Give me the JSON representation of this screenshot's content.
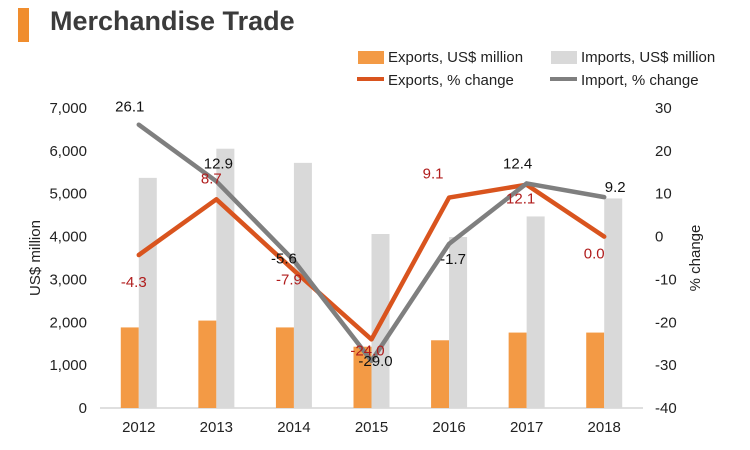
{
  "header": {
    "title": "Merchandise Trade",
    "accent_color": "#f08d2e"
  },
  "chart_data": {
    "type": "bar",
    "categories": [
      "2012",
      "2013",
      "2014",
      "2015",
      "2016",
      "2017",
      "2018"
    ],
    "series": [
      {
        "name": "Exports, US$ million",
        "kind": "bar",
        "axis": "left",
        "color": "#f39a45",
        "values": [
          1880,
          2040,
          1880,
          1430,
          1580,
          1760,
          1760
        ]
      },
      {
        "name": "Imports, US$ million",
        "kind": "bar",
        "axis": "left",
        "color": "#d9d9d9",
        "values": [
          5370,
          6050,
          5720,
          4060,
          3990,
          4470,
          4890
        ]
      },
      {
        "name": "Exports, % change",
        "kind": "line",
        "axis": "right",
        "color": "#d9541e",
        "values": [
          -4.3,
          8.7,
          -7.9,
          -24.0,
          9.1,
          12.1,
          0.0
        ],
        "labels": [
          "-4.3",
          "8.7",
          "-7.9",
          "-24.0",
          "9.1",
          "12.1",
          "0.0"
        ],
        "label_color": "#b01c1c"
      },
      {
        "name": "Import, % change",
        "kind": "line",
        "axis": "right",
        "color": "#7f7f7f",
        "values": [
          26.1,
          12.9,
          -5.6,
          -29.0,
          -1.7,
          12.4,
          9.2
        ],
        "labels": [
          "26.1",
          "12.9",
          "-5.6",
          "-29.0",
          "-1.7",
          "12.4",
          "9.2"
        ],
        "label_color": "#111111"
      }
    ],
    "ylabel_left": "US$ million",
    "ylabel_right": "% change",
    "ylim_left": [
      0,
      7000
    ],
    "ylim_right": [
      -40,
      30
    ],
    "yticks_left": [
      "0",
      "1,000",
      "2,000",
      "3,000",
      "4,000",
      "5,000",
      "6,000",
      "7,000"
    ],
    "yticks_right": [
      "-40",
      "-30",
      "-20",
      "-10",
      "0",
      "10",
      "20",
      "30"
    ],
    "grid": false,
    "legend_position": "top-right"
  }
}
